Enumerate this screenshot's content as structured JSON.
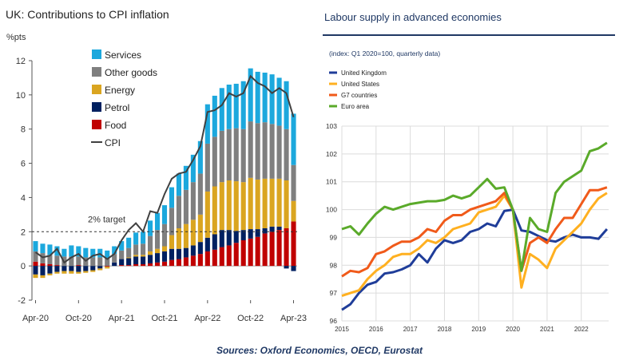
{
  "source": "Sources: Oxford Economics, OECD, Eurostat",
  "chart_data": [
    {
      "type": "bar",
      "stacked": true,
      "title": "UK: Contributions to CPI inflation",
      "ylabel": "%pts",
      "ylim": [
        -2,
        12
      ],
      "yticks": [
        -2,
        0,
        2,
        4,
        6,
        8,
        10,
        12
      ],
      "xtick_labels": [
        "Apr-20",
        "Oct-20",
        "Apr-21",
        "Oct-21",
        "Apr-22",
        "Oct-22",
        "Apr-23"
      ],
      "months": [
        "2020-04",
        "2020-05",
        "2020-06",
        "2020-07",
        "2020-08",
        "2020-09",
        "2020-10",
        "2020-11",
        "2020-12",
        "2021-01",
        "2021-02",
        "2021-03",
        "2021-04",
        "2021-05",
        "2021-06",
        "2021-07",
        "2021-08",
        "2021-09",
        "2021-10",
        "2021-11",
        "2021-12",
        "2022-01",
        "2022-02",
        "2022-03",
        "2022-04",
        "2022-05",
        "2022-06",
        "2022-07",
        "2022-08",
        "2022-09",
        "2022-10",
        "2022-11",
        "2022-12",
        "2023-01",
        "2023-02",
        "2023-03",
        "2023-04"
      ],
      "target_line": {
        "value": 2,
        "label": "2% target"
      },
      "legend_position": "top-left",
      "grid": false,
      "series": [
        {
          "name": "Food",
          "color": "#c00000",
          "values": [
            0.25,
            0.15,
            0.1,
            0.05,
            0.0,
            0.0,
            0.05,
            0.0,
            0.0,
            0.0,
            -0.05,
            0.0,
            0.05,
            0.05,
            0.1,
            0.1,
            0.15,
            0.2,
            0.25,
            0.35,
            0.4,
            0.5,
            0.6,
            0.7,
            0.85,
            0.95,
            1.1,
            1.2,
            1.35,
            1.5,
            1.6,
            1.7,
            1.9,
            2.0,
            2.1,
            2.2,
            2.6
          ]
        },
        {
          "name": "Petrol",
          "color": "#002060",
          "values": [
            -0.5,
            -0.55,
            -0.45,
            -0.35,
            -0.3,
            -0.3,
            -0.35,
            -0.3,
            -0.25,
            -0.15,
            0.0,
            0.2,
            0.35,
            0.4,
            0.45,
            0.45,
            0.5,
            0.55,
            0.6,
            0.65,
            0.6,
            0.55,
            0.6,
            0.7,
            0.8,
            0.9,
            1.0,
            0.9,
            0.7,
            0.6,
            0.55,
            0.45,
            0.3,
            0.3,
            0.2,
            -0.15,
            -0.3
          ]
        },
        {
          "name": "Energy",
          "color": "#daa520",
          "values": [
            -0.2,
            -0.15,
            -0.1,
            -0.1,
            -0.15,
            -0.15,
            -0.1,
            -0.1,
            -0.1,
            -0.1,
            -0.1,
            0.0,
            0.0,
            0.05,
            0.1,
            0.1,
            0.2,
            0.25,
            0.3,
            0.8,
            1.2,
            1.4,
            1.5,
            1.6,
            2.7,
            2.8,
            2.8,
            2.9,
            2.9,
            2.8,
            3.0,
            2.9,
            2.9,
            2.8,
            2.8,
            2.8,
            1.2
          ]
        },
        {
          "name": "Other goods",
          "color": "#7f7f7f",
          "values": [
            0.6,
            0.6,
            0.55,
            0.55,
            0.55,
            0.55,
            0.5,
            0.5,
            0.5,
            0.5,
            0.45,
            0.5,
            0.5,
            0.55,
            0.6,
            0.65,
            0.9,
            1.1,
            1.3,
            1.6,
            1.9,
            2.0,
            2.2,
            2.4,
            2.8,
            2.9,
            3.0,
            3.0,
            3.1,
            3.1,
            3.3,
            3.3,
            3.3,
            3.2,
            3.1,
            3.0,
            2.1
          ]
        },
        {
          "name": "Services",
          "color": "#1ca8dd",
          "values": [
            0.6,
            0.55,
            0.6,
            0.55,
            0.45,
            0.65,
            0.6,
            0.55,
            0.5,
            0.5,
            0.45,
            0.45,
            0.55,
            0.6,
            0.7,
            0.7,
            0.9,
            1.0,
            1.1,
            1.2,
            1.3,
            1.4,
            1.6,
            1.9,
            2.3,
            2.4,
            2.5,
            2.6,
            2.6,
            2.8,
            3.1,
            3.0,
            2.9,
            2.9,
            2.8,
            2.8,
            3.0
          ]
        }
      ],
      "cpi": {
        "name": "CPI",
        "color": "#404040",
        "values": [
          0.8,
          0.5,
          0.6,
          1.0,
          0.2,
          0.5,
          0.7,
          0.3,
          0.6,
          0.7,
          0.4,
          0.7,
          1.5,
          2.1,
          2.5,
          2.0,
          3.2,
          3.1,
          4.2,
          5.1,
          5.4,
          5.5,
          6.2,
          7.0,
          9.0,
          9.1,
          9.4,
          10.1,
          9.9,
          10.1,
          11.1,
          10.7,
          10.5,
          10.1,
          10.4,
          10.1,
          8.7
        ]
      }
    },
    {
      "type": "line",
      "title": "Labour supply in advanced economies",
      "subtitle": "(index: Q1 2020=100, quarterly data)",
      "xlim": [
        2015,
        2022.8
      ],
      "ylim": [
        96,
        103
      ],
      "yticks": [
        96,
        97,
        98,
        99,
        100,
        101,
        102,
        103
      ],
      "xtick_labels": [
        "2015",
        "2016",
        "2017",
        "2018",
        "2019",
        "2020",
        "2021",
        "2022"
      ],
      "grid": true,
      "legend_position": "top-left",
      "quarters": [
        "2015-Q1",
        "2015-Q2",
        "2015-Q3",
        "2015-Q4",
        "2016-Q1",
        "2016-Q2",
        "2016-Q3",
        "2016-Q4",
        "2017-Q1",
        "2017-Q2",
        "2017-Q3",
        "2017-Q4",
        "2018-Q1",
        "2018-Q2",
        "2018-Q3",
        "2018-Q4",
        "2019-Q1",
        "2019-Q2",
        "2019-Q3",
        "2019-Q4",
        "2020-Q1",
        "2020-Q2",
        "2020-Q3",
        "2020-Q4",
        "2021-Q1",
        "2021-Q2",
        "2021-Q3",
        "2021-Q4",
        "2022-Q1",
        "2022-Q2",
        "2022-Q3",
        "2022-Q4"
      ],
      "series": [
        {
          "name": "United Kingdom",
          "color": "#1f3d99",
          "values": [
            96.4,
            96.6,
            97.0,
            97.3,
            97.4,
            97.7,
            97.75,
            97.85,
            98.0,
            98.4,
            98.1,
            98.6,
            98.9,
            98.8,
            98.9,
            99.2,
            99.3,
            99.5,
            99.4,
            99.95,
            100.0,
            99.25,
            99.2,
            99.05,
            98.9,
            98.85,
            99.0,
            99.1,
            99.0,
            99.0,
            98.95,
            99.3
          ]
        },
        {
          "name": "United States",
          "color": "#ffb020",
          "values": [
            96.9,
            97.0,
            97.1,
            97.5,
            97.8,
            98.0,
            98.3,
            98.4,
            98.4,
            98.6,
            98.9,
            98.8,
            99.0,
            99.3,
            99.4,
            99.5,
            99.9,
            100.0,
            100.1,
            100.5,
            100.0,
            97.2,
            98.4,
            98.2,
            97.9,
            98.6,
            98.9,
            99.2,
            99.5,
            100.0,
            100.4,
            100.6
          ]
        },
        {
          "name": "G7 countries",
          "color": "#f05a1a",
          "values": [
            97.6,
            97.8,
            97.75,
            97.9,
            98.4,
            98.5,
            98.7,
            98.85,
            98.85,
            99.0,
            99.3,
            99.2,
            99.6,
            99.8,
            99.8,
            100.0,
            100.1,
            100.2,
            100.3,
            100.6,
            100.0,
            97.8,
            98.8,
            99.0,
            98.8,
            99.3,
            99.7,
            99.7,
            100.2,
            100.7,
            100.7,
            100.8
          ]
        },
        {
          "name": "Euro area",
          "color": "#5aaa2a",
          "values": [
            99.3,
            99.4,
            99.1,
            99.5,
            99.85,
            100.1,
            100.0,
            100.1,
            100.2,
            100.25,
            100.3,
            100.3,
            100.35,
            100.5,
            100.4,
            100.5,
            100.8,
            101.1,
            100.75,
            100.8,
            100.0,
            97.8,
            99.7,
            99.3,
            99.2,
            100.6,
            101.0,
            101.2,
            101.4,
            102.1,
            102.2,
            102.4
          ]
        }
      ]
    }
  ]
}
